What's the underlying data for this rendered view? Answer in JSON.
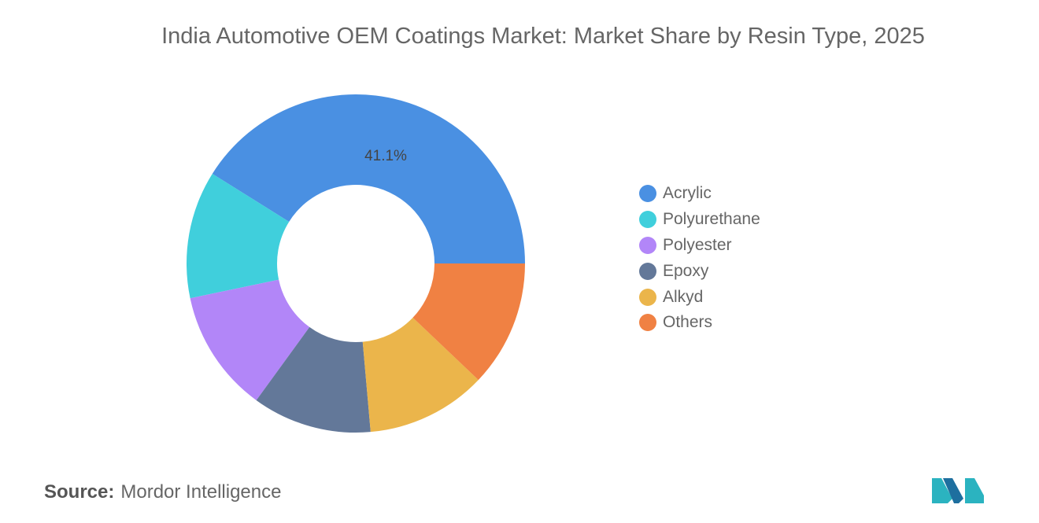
{
  "chart_data": {
    "type": "pie",
    "donut": true,
    "title": "India Automotive OEM Coatings Market: Market Share by Resin Type, 2025",
    "categories": [
      "Acrylic",
      "Polyurethane",
      "Polyester",
      "Epoxy",
      "Alkyd",
      "Others"
    ],
    "values": [
      41.1,
      12.2,
      11.7,
      11.4,
      11.5,
      12.1
    ],
    "data_labels": {
      "Acrylic": "41.1%"
    },
    "colors": [
      "#4a90e2",
      "#40cfdc",
      "#b286f8",
      "#637899",
      "#ebb54b",
      "#f08143"
    ],
    "legend_position": "right"
  },
  "source": {
    "label": "Source:",
    "text": "Mordor Intelligence"
  }
}
